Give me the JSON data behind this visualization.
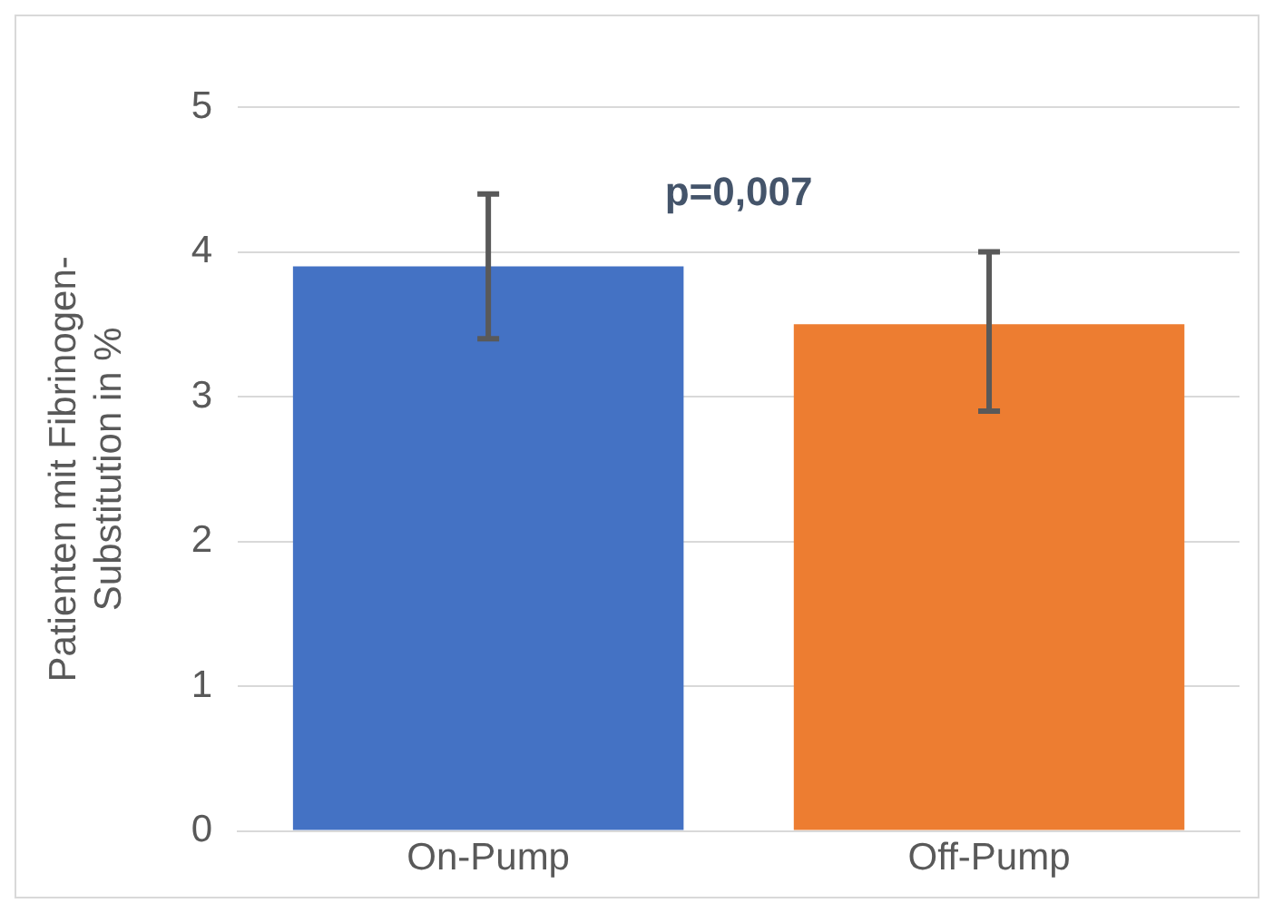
{
  "chart_data": {
    "type": "bar",
    "ylabel": "Patienten mit Fibrinogen-\nSubstitution in %",
    "categories": [
      "On-Pump",
      "Off-Pump"
    ],
    "values": [
      3.9,
      3.5
    ],
    "colors": [
      "#4472c4",
      "#ed7d31"
    ],
    "errors": [
      [
        3.4,
        4.4
      ],
      [
        2.9,
        4.0
      ]
    ],
    "ylim": [
      0,
      5
    ],
    "yticks": [
      0,
      1,
      2,
      3,
      4,
      5
    ],
    "grid": "y",
    "legend": false,
    "annotations": [
      "p=0,007"
    ]
  }
}
